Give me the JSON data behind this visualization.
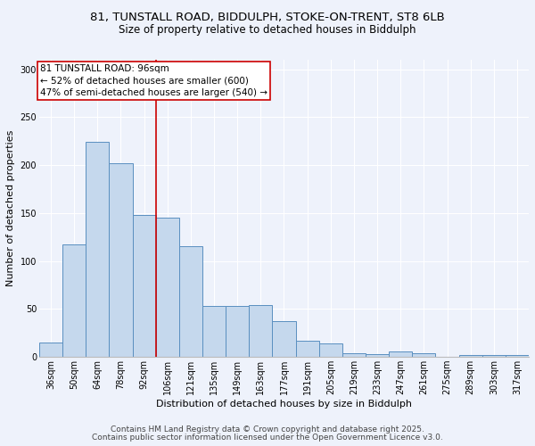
{
  "title_line1": "81, TUNSTALL ROAD, BIDDULPH, STOKE-ON-TRENT, ST8 6LB",
  "title_line2": "Size of property relative to detached houses in Biddulph",
  "xlabel": "Distribution of detached houses by size in Biddulph",
  "ylabel": "Number of detached properties",
  "categories": [
    "36sqm",
    "50sqm",
    "64sqm",
    "78sqm",
    "92sqm",
    "106sqm",
    "121sqm",
    "135sqm",
    "149sqm",
    "163sqm",
    "177sqm",
    "191sqm",
    "205sqm",
    "219sqm",
    "233sqm",
    "247sqm",
    "261sqm",
    "275sqm",
    "289sqm",
    "303sqm",
    "317sqm"
  ],
  "values": [
    15,
    117,
    224,
    202,
    148,
    145,
    116,
    53,
    53,
    54,
    37,
    17,
    14,
    4,
    3,
    6,
    4,
    0,
    2,
    2,
    2
  ],
  "bar_color": "#c5d8ed",
  "bar_edge_color": "#5a8fc0",
  "background_color": "#eef2fb",
  "grid_color": "#ffffff",
  "vline_x": 4.5,
  "vline_color": "#cc0000",
  "annotation_text": "81 TUNSTALL ROAD: 96sqm\n← 52% of detached houses are smaller (600)\n47% of semi-detached houses are larger (540) →",
  "annotation_box_color": "#ffffff",
  "annotation_box_edge": "#cc0000",
  "ylim": [
    0,
    310
  ],
  "yticks": [
    0,
    50,
    100,
    150,
    200,
    250,
    300
  ],
  "footnote_line1": "Contains HM Land Registry data © Crown copyright and database right 2025.",
  "footnote_line2": "Contains public sector information licensed under the Open Government Licence v3.0.",
  "title_fontsize": 9.5,
  "subtitle_fontsize": 8.5,
  "axis_label_fontsize": 8,
  "tick_fontsize": 7,
  "annotation_fontsize": 7.5,
  "footnote_fontsize": 6.5
}
